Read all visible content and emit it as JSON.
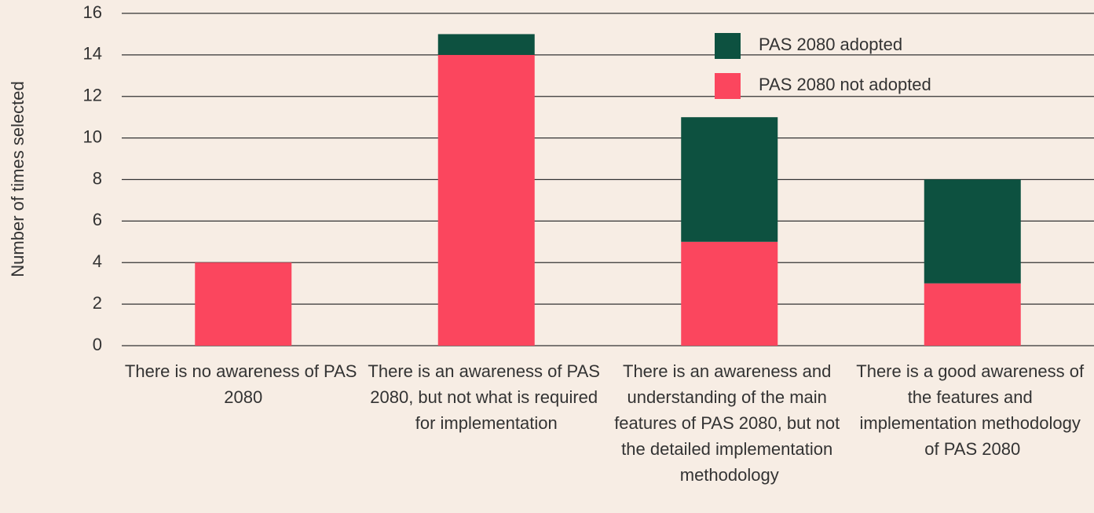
{
  "chart_data": {
    "type": "stacked_bar",
    "y_label": "Number of times selected",
    "categories": [
      "There is no awareness of PAS 2080",
      "There is an awareness of PAS 2080, but not what is required for implementation",
      "There is an awareness and understanding of the main features of PAS 2080, but not the detailed implementation methodology",
      "There is a good awareness of the features and implementation methodology of PAS 2080"
    ],
    "series": [
      {
        "name": "PAS 2080 not adopted",
        "color": "#fb465e",
        "values": [
          4,
          14,
          5,
          3
        ]
      },
      {
        "name": "PAS 2080 adopted",
        "color": "#0d5140",
        "values": [
          0,
          1,
          6,
          5
        ]
      }
    ],
    "ylim": [
      0,
      16
    ],
    "yticks": [
      0,
      2,
      4,
      6,
      8,
      10,
      12,
      14,
      16
    ],
    "grid": true,
    "legend": "top-right"
  }
}
